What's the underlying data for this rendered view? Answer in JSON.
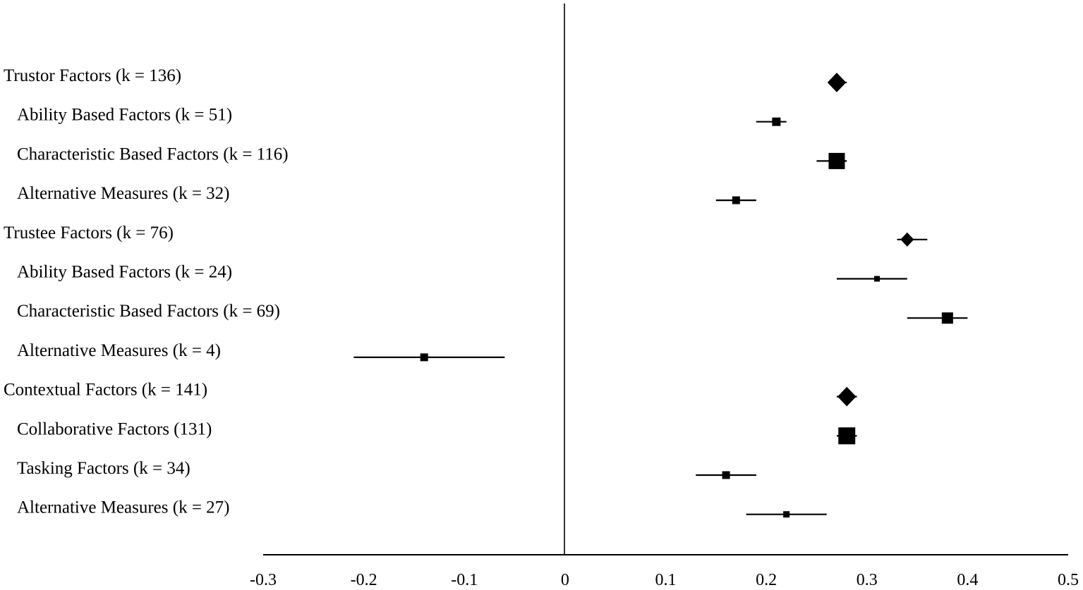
{
  "chart_data": {
    "type": "forest",
    "title": "",
    "xlabel": "",
    "ylabel": "",
    "xlim": [
      -0.3,
      0.5
    ],
    "xticks": [
      "-0.3",
      "-0.2",
      "-0.1",
      "0",
      "0.1",
      "0.2",
      "0.3",
      "0.4",
      "0.5"
    ],
    "reference_line": 0,
    "grid": false,
    "legend": "none",
    "rows": [
      {
        "label": "Trustor Factors (k = 136)",
        "estimate": 0.27,
        "ci": [
          0.262,
          0.28
        ],
        "marker": "diamond",
        "weight": 0.9,
        "indent": 0
      },
      {
        "label": "Ability Based Factors (k = 51)",
        "estimate": 0.21,
        "ci": [
          0.19,
          0.22
        ],
        "marker": "square",
        "weight": 0.45,
        "indent": 1
      },
      {
        "label": "Characteristic Based Factors (k = 116)",
        "estimate": 0.27,
        "ci": [
          0.25,
          0.28
        ],
        "marker": "square",
        "weight": 1.0,
        "indent": 1
      },
      {
        "label": "Alternative Measures (k = 32)",
        "estimate": 0.17,
        "ci": [
          0.15,
          0.19
        ],
        "marker": "square",
        "weight": 0.4,
        "indent": 1
      },
      {
        "label": "Trustee Factors (k = 76)",
        "estimate": 0.34,
        "ci": [
          0.33,
          0.36
        ],
        "marker": "diamond",
        "weight": 0.55,
        "indent": 0
      },
      {
        "label": "Ability Based Factors (k = 24)",
        "estimate": 0.31,
        "ci": [
          0.27,
          0.34
        ],
        "marker": "square",
        "weight": 0.25,
        "indent": 1
      },
      {
        "label": "Characteristic Based Factors (k =  69)",
        "estimate": 0.38,
        "ci": [
          0.34,
          0.4
        ],
        "marker": "square",
        "weight": 0.65,
        "indent": 1
      },
      {
        "label": "Alternative Measures (k = 4)",
        "estimate": -0.14,
        "ci": [
          -0.21,
          -0.06
        ],
        "marker": "square",
        "weight": 0.4,
        "indent": 1
      },
      {
        "label": "Contextual Factors (k = 141)",
        "estimate": 0.28,
        "ci": [
          0.27,
          0.29
        ],
        "marker": "diamond",
        "weight": 0.9,
        "indent": 0
      },
      {
        "label": "Collaborative Factors (131)",
        "estimate": 0.28,
        "ci": [
          0.27,
          0.29
        ],
        "marker": "square",
        "weight": 1.05,
        "indent": 1
      },
      {
        "label": "Tasking Factors (k = 34)",
        "estimate": 0.16,
        "ci": [
          0.13,
          0.19
        ],
        "marker": "square",
        "weight": 0.4,
        "indent": 1
      },
      {
        "label": "Alternative Measures (k = 27)",
        "estimate": 0.22,
        "ci": [
          0.18,
          0.26
        ],
        "marker": "square",
        "weight": 0.3,
        "indent": 1
      }
    ]
  }
}
